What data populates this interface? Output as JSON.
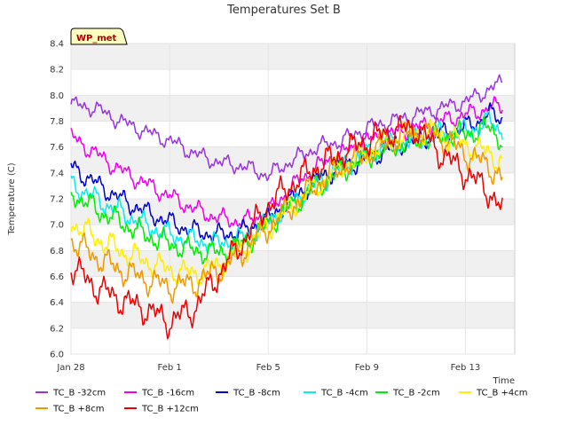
{
  "chart_data": {
    "type": "line",
    "title": "Temperatures Set B",
    "xlabel": "Time",
    "ylabel": "Temperature (C)",
    "badge": "WP_met",
    "ylim": [
      6.0,
      8.4
    ],
    "yticks": [
      "6.0",
      "6.2",
      "6.4",
      "6.6",
      "6.8",
      "7.0",
      "7.2",
      "7.4",
      "7.6",
      "7.8",
      "8.0",
      "8.2",
      "8.4"
    ],
    "xlim": [
      "2024-01-28",
      "2024-02-15"
    ],
    "xticks": [
      {
        "date": "2024-01-28",
        "label": "Jan 28"
      },
      {
        "date": "2024-02-01",
        "label": "Feb 1"
      },
      {
        "date": "2024-02-05",
        "label": "Feb 5"
      },
      {
        "date": "2024-02-09",
        "label": "Feb 9"
      },
      {
        "date": "2024-02-13",
        "label": "Feb 13"
      }
    ],
    "grid": true,
    "legend_position": "bottom",
    "series": [
      {
        "name": "TC_B -32cm",
        "color": "#9933dd",
        "x": [
          "2024-01-28",
          "2024-01-29",
          "2024-01-30",
          "2024-01-31",
          "2024-02-01",
          "2024-02-02",
          "2024-02-03",
          "2024-02-04",
          "2024-02-05",
          "2024-02-06",
          "2024-02-07",
          "2024-02-08",
          "2024-02-09",
          "2024-02-10",
          "2024-02-11",
          "2024-02-12",
          "2024-02-13",
          "2024-02-14",
          "2024-02-14T12:00"
        ],
        "values": [
          7.93,
          7.9,
          7.8,
          7.72,
          7.65,
          7.55,
          7.48,
          7.45,
          7.38,
          7.5,
          7.6,
          7.65,
          7.75,
          7.8,
          7.85,
          7.9,
          7.95,
          8.05,
          8.1
        ]
      },
      {
        "name": "TC_B -16cm",
        "color": "#ee00ee",
        "x": [
          "2024-01-28",
          "2024-01-29",
          "2024-01-30",
          "2024-01-31",
          "2024-02-01",
          "2024-02-02",
          "2024-02-03",
          "2024-02-04",
          "2024-02-05",
          "2024-02-06",
          "2024-02-07",
          "2024-02-08",
          "2024-02-09",
          "2024-02-10",
          "2024-02-11",
          "2024-02-12",
          "2024-02-13",
          "2024-02-14",
          "2024-02-14T12:00"
        ],
        "values": [
          7.68,
          7.55,
          7.42,
          7.32,
          7.22,
          7.12,
          7.05,
          7.02,
          7.1,
          7.3,
          7.45,
          7.55,
          7.65,
          7.7,
          7.75,
          7.8,
          7.85,
          7.9,
          7.92
        ]
      },
      {
        "name": "TC_B -8cm",
        "color": "#0000cc",
        "x": [
          "2024-01-28",
          "2024-01-29",
          "2024-01-30",
          "2024-01-31",
          "2024-02-01",
          "2024-02-02",
          "2024-02-03",
          "2024-02-04",
          "2024-02-05",
          "2024-02-06",
          "2024-02-07",
          "2024-02-08",
          "2024-02-09",
          "2024-02-10",
          "2024-02-11",
          "2024-02-12",
          "2024-02-13",
          "2024-02-14",
          "2024-02-14T12:00"
        ],
        "values": [
          7.45,
          7.32,
          7.2,
          7.1,
          7.02,
          6.95,
          6.92,
          6.95,
          7.05,
          7.2,
          7.35,
          7.45,
          7.5,
          7.6,
          7.65,
          7.7,
          7.75,
          7.85,
          7.82
        ]
      },
      {
        "name": "TC_B -4cm",
        "color": "#00eeee",
        "x": [
          "2024-01-28",
          "2024-01-29",
          "2024-01-30",
          "2024-01-31",
          "2024-02-01",
          "2024-02-02",
          "2024-02-03",
          "2024-02-04",
          "2024-02-05",
          "2024-02-06",
          "2024-02-07",
          "2024-02-08",
          "2024-02-09",
          "2024-02-10",
          "2024-02-11",
          "2024-02-12",
          "2024-02-13",
          "2024-02-14",
          "2024-02-14T12:00"
        ],
        "values": [
          7.32,
          7.2,
          7.1,
          7.0,
          6.92,
          6.88,
          6.85,
          6.9,
          7.02,
          7.18,
          7.32,
          7.45,
          7.55,
          7.62,
          7.65,
          7.7,
          7.72,
          7.8,
          7.72
        ]
      },
      {
        "name": "TC_B -2cm",
        "color": "#00ee00",
        "x": [
          "2024-01-28",
          "2024-01-29",
          "2024-01-30",
          "2024-01-31",
          "2024-02-01",
          "2024-02-02",
          "2024-02-03",
          "2024-02-04",
          "2024-02-05",
          "2024-02-06",
          "2024-02-07",
          "2024-02-08",
          "2024-02-09",
          "2024-02-10",
          "2024-02-11",
          "2024-02-12",
          "2024-02-13",
          "2024-02-14",
          "2024-02-14T12:00"
        ],
        "values": [
          7.25,
          7.12,
          7.02,
          6.92,
          6.85,
          6.8,
          6.78,
          6.85,
          7.0,
          7.15,
          7.3,
          7.42,
          7.52,
          7.6,
          7.65,
          7.68,
          7.7,
          7.75,
          7.65
        ]
      },
      {
        "name": "TC_B +4cm",
        "color": "#ffee00",
        "x": [
          "2024-01-28",
          "2024-01-29",
          "2024-01-30",
          "2024-01-31",
          "2024-02-01",
          "2024-02-02",
          "2024-02-03",
          "2024-02-04",
          "2024-02-05",
          "2024-02-06",
          "2024-02-07",
          "2024-02-08",
          "2024-02-09",
          "2024-02-10",
          "2024-02-11",
          "2024-02-12",
          "2024-02-13",
          "2024-02-14",
          "2024-02-14T12:00"
        ],
        "values": [
          7.02,
          6.9,
          6.8,
          6.72,
          6.65,
          6.62,
          6.68,
          6.8,
          6.98,
          7.15,
          7.3,
          7.45,
          7.55,
          7.65,
          7.72,
          7.7,
          7.62,
          7.55,
          7.48
        ]
      },
      {
        "name": "TC_B +8cm",
        "color": "#ee9900",
        "x": [
          "2024-01-28",
          "2024-01-29",
          "2024-01-30",
          "2024-01-31",
          "2024-02-01",
          "2024-02-02",
          "2024-02-03",
          "2024-02-04",
          "2024-02-05",
          "2024-02-06",
          "2024-02-07",
          "2024-02-08",
          "2024-02-09",
          "2024-02-10",
          "2024-02-11",
          "2024-02-12",
          "2024-02-13",
          "2024-02-14",
          "2024-02-14T12:00"
        ],
        "values": [
          6.88,
          6.75,
          6.65,
          6.58,
          6.52,
          6.55,
          6.65,
          6.8,
          6.98,
          7.15,
          7.32,
          7.45,
          7.55,
          7.65,
          7.72,
          7.68,
          7.55,
          7.45,
          7.35
        ]
      },
      {
        "name": "TC_B +12cm",
        "color": "#ee0000",
        "x": [
          "2024-01-28",
          "2024-01-29",
          "2024-01-30",
          "2024-01-31",
          "2024-02-01",
          "2024-02-02",
          "2024-02-03",
          "2024-02-04",
          "2024-02-05",
          "2024-02-06",
          "2024-02-07",
          "2024-02-08",
          "2024-02-09",
          "2024-02-10",
          "2024-02-11",
          "2024-02-12",
          "2024-02-13",
          "2024-02-14",
          "2024-02-14T12:00"
        ],
        "values": [
          6.68,
          6.52,
          6.42,
          6.35,
          6.25,
          6.35,
          6.62,
          6.88,
          7.15,
          7.32,
          7.45,
          7.55,
          7.65,
          7.72,
          7.75,
          7.55,
          7.4,
          7.25,
          7.1
        ]
      }
    ]
  }
}
